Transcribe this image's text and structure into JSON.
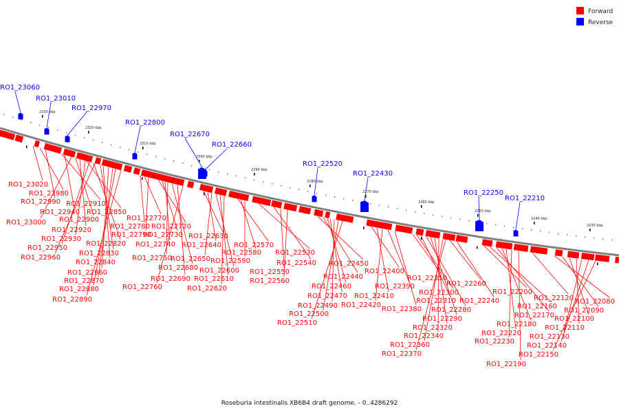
{
  "colors": {
    "forward": "#ff0000",
    "reverse": "#0000ff",
    "backbone": "#808080",
    "text": "#222222"
  },
  "legend": [
    {
      "key": "forward",
      "label": "Forward",
      "color": "#ff0000"
    },
    {
      "key": "reverse",
      "label": "Reverse",
      "color": "#0000ff"
    }
  ],
  "caption": "Roseburia intestinalis XB6B4 draft genome. - 0..4286292",
  "kbp_ticks": [
    "2330 kbp",
    "2320 kbp",
    "2310 kbp",
    "2300 kbp",
    "2290 kbp",
    "2280 kbp",
    "2270 kbp",
    "2260 kbp",
    "2250 kbp",
    "2240 kbp",
    "2230 kbp"
  ],
  "reverse_labels": [
    "RO1_23060",
    "RO1_23010",
    "RO1_22970",
    "RO1_22800",
    "RO1_22670",
    "RO1_22660",
    "RO1_22520",
    "RO1_22430",
    "RO1_22250",
    "RO1_22210"
  ],
  "forward_labels": [
    "RO1_23020",
    "RO1_22980",
    "RO1_22990",
    "RO1_22910",
    "RO1_22940",
    "RO1_23000",
    "RO1_22850",
    "RO1_22900",
    "RO1_22920",
    "RO1_22930",
    "RO1_22820",
    "RO1_22950",
    "RO1_22830",
    "RO1_22960",
    "RO1_22840",
    "RO1_22860",
    "RO1_22870",
    "RO1_22880",
    "RO1_22890",
    "RO1_22770",
    "RO1_22780",
    "RO1_22720",
    "RO1_22790",
    "RO1_22730",
    "RO1_22740",
    "RO1_22750",
    "RO1_22680",
    "RO1_22690",
    "RO1_22760",
    "RO1_22630",
    "RO1_22640",
    "RO1_22650",
    "RO1_22600",
    "RO1_22610",
    "RO1_22620",
    "RO1_22570",
    "RO1_22580",
    "RO1_22590",
    "RO1_22530",
    "RO1_22540",
    "RO1_22550",
    "RO1_22560",
    "RO1_22450",
    "RO1_22440",
    "RO1_22460",
    "RO1_22470",
    "RO1_22490",
    "RO1_22500",
    "RO1_22510",
    "RO1_22400",
    "RO1_22410",
    "RO1_22420",
    "RO1_22390",
    "RO1_22380",
    "RO1_22350",
    "RO1_22300",
    "RO1_22310",
    "RO1_22280",
    "RO1_22290",
    "RO1_22320",
    "RO1_22340",
    "RO1_22360",
    "RO1_22370",
    "RO1_22260",
    "RO1_22240",
    "RO1_22200",
    "RO1_22160",
    "RO1_22170",
    "RO1_22180",
    "RO1_22220",
    "RO1_22230",
    "RO1_22190",
    "RO1_22120",
    "RO1_22080",
    "RO1_22090",
    "RO1_22100",
    "RO1_22110",
    "RO1_22130",
    "RO1_22140",
    "RO1_22150"
  ]
}
